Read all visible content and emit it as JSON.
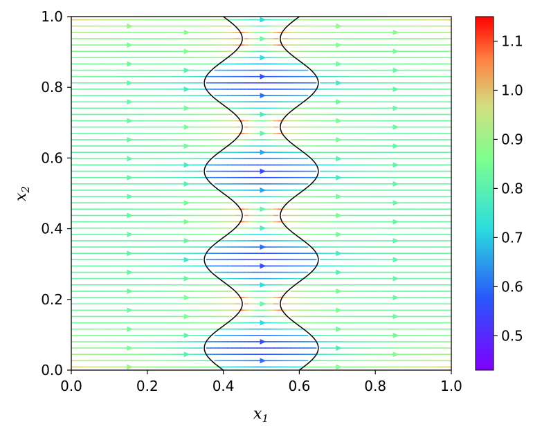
{
  "chart_data": {
    "type": "streamplot",
    "title": "",
    "xlabel": "x",
    "xlabel_subscript": "1",
    "ylabel": "x",
    "ylabel_subscript": "2",
    "xlim": [
      0.0,
      1.0
    ],
    "ylim": [
      0.0,
      1.0
    ],
    "x_ticks": [
      "0.0",
      "0.2",
      "0.4",
      "0.6",
      "0.8",
      "1.0"
    ],
    "y_ticks": [
      "0.0",
      "0.2",
      "0.4",
      "0.6",
      "0.8",
      "1.0"
    ],
    "colorbar": {
      "colormap": "rainbow",
      "range": [
        0.43,
        1.15
      ],
      "ticks": [
        "0.5",
        "0.6",
        "0.7",
        "0.8",
        "0.9",
        "1.0",
        "1.1"
      ]
    },
    "flow_direction": "left-to-right",
    "channel_walls": {
      "left_wall_x": [
        0.35,
        0.45
      ],
      "right_wall_x": [
        0.55,
        0.65
      ],
      "narrowings_y": [
        0.0,
        0.19,
        0.44,
        0.69,
        1.0
      ],
      "bulges_y": [
        0.06,
        0.31,
        0.56,
        0.81
      ]
    },
    "grid": false,
    "legend": "none"
  },
  "colors": {
    "wall": "#000000",
    "colormap_stops": [
      "#8000ff",
      "#2adddd",
      "#7fff8e",
      "#d4dd80",
      "#ff8040",
      "#ff0000"
    ]
  }
}
